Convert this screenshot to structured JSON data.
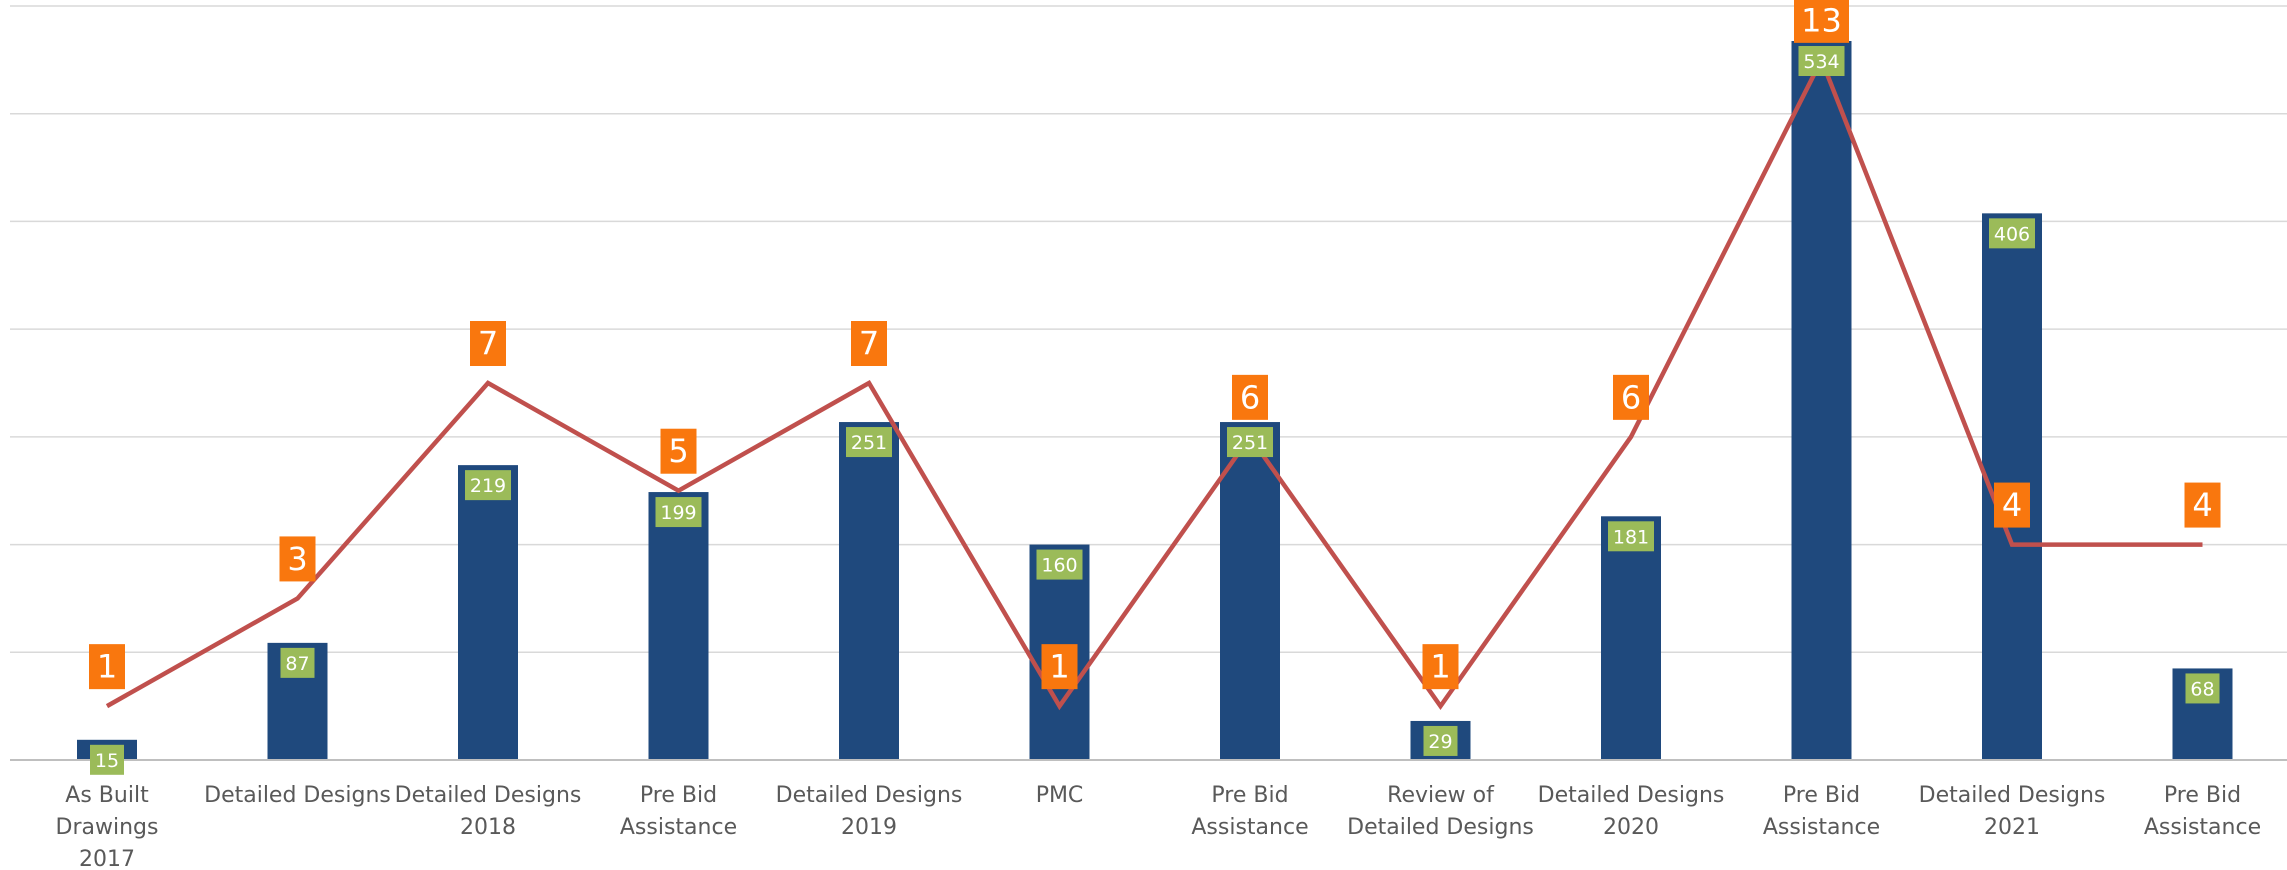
{
  "chart_data": {
    "type": "bar",
    "categories": [
      [
        "As Built",
        "Drawings",
        "2017"
      ],
      [
        "Detailed Designs"
      ],
      [
        "Detailed Designs",
        "2018"
      ],
      [
        "Pre Bid",
        "Assistance"
      ],
      [
        "Detailed Designs",
        "2019"
      ],
      [
        "PMC"
      ],
      [
        "Pre Bid",
        "Assistance"
      ],
      [
        "Review of",
        "Detailed Designs"
      ],
      [
        "Detailed Designs",
        "2020"
      ],
      [
        "Pre Bid",
        "Assistance"
      ],
      [
        "Detailed Designs",
        "2021"
      ],
      [
        "Pre Bid",
        "Assistance"
      ]
    ],
    "series": [
      {
        "type": "bar",
        "values": [
          15,
          87,
          219,
          199,
          251,
          160,
          251,
          29,
          181,
          534,
          406,
          68
        ]
      },
      {
        "type": "line",
        "values": [
          1,
          3,
          7,
          5,
          7,
          1,
          6,
          1,
          6,
          13,
          4,
          4
        ]
      }
    ],
    "ylim": [
      0,
      560
    ],
    "y2lim": [
      0,
      14
    ],
    "grid": true,
    "legend": "none",
    "colors": {
      "bar": "#1f497d",
      "line": "#c0504d",
      "bar_label_bg": "#9bbb59",
      "line_label_bg": "#f9770e",
      "grid": "#d9d9d9",
      "axis": "#bfbfbf",
      "text": "#595959"
    }
  }
}
